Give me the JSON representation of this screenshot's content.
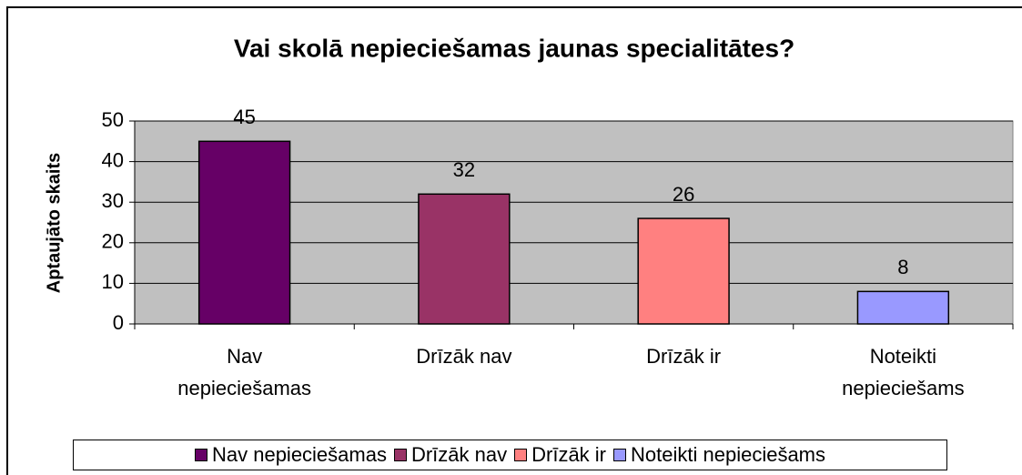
{
  "chart_data": {
    "type": "bar",
    "title": "Vai skolā nepieciešamas jaunas specialitātes?",
    "y_label": "Aptaujāto skaits",
    "categories": [
      "Nav nepieciešamas",
      "Drīzāk nav",
      "Drīzāk ir",
      "Noteikti nepieciešams"
    ],
    "values": [
      45,
      32,
      26,
      8
    ],
    "colors": [
      "#660066",
      "#993366",
      "#ff8080",
      "#9999ff"
    ],
    "ylim": [
      0,
      50
    ],
    "yticks": [
      0,
      10,
      20,
      30,
      40,
      50
    ],
    "grid": true,
    "legend": "bottom"
  }
}
